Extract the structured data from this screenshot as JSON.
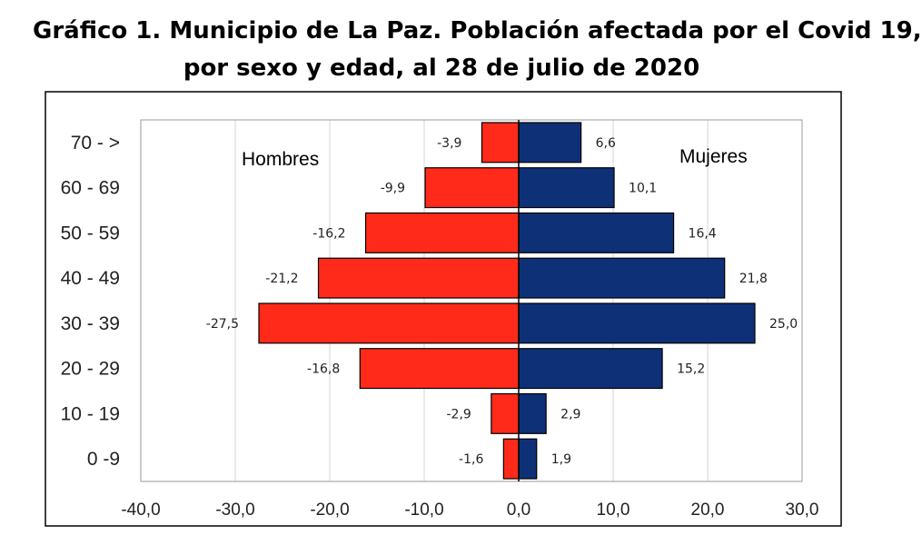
{
  "title_line1": "Gráfico 1. Municipio de La Paz. Población afectada por el Covid 19,",
  "title_line2": "por sexo y edad, al 28 de julio de 2020",
  "chart_data": {
    "type": "bar",
    "orientation": "horizontal",
    "stacked": "diverging",
    "categories": [
      "0 -9",
      "10 - 19",
      "20 - 29",
      "30 - 39",
      "40 - 49",
      "50 - 59",
      "60 - 69",
      "70 - >"
    ],
    "series": [
      {
        "name": "Hombres",
        "values": [
          -1.6,
          -2.9,
          -16.8,
          -27.5,
          -21.2,
          -16.2,
          -9.9,
          -3.9
        ],
        "labels": [
          "-1,6",
          "-2,9",
          "-16,8",
          "-27,5",
          "-21,2",
          "-16,2",
          "-9,9",
          "-3,9"
        ],
        "color": "#ff2a1a"
      },
      {
        "name": "Mujeres",
        "values": [
          1.9,
          2.9,
          15.2,
          25.0,
          21.8,
          16.4,
          10.1,
          6.6
        ],
        "labels": [
          "1,9",
          "2,9",
          "15,2",
          "25,0",
          "21,8",
          "16,4",
          "10,1",
          "6,6"
        ],
        "color": "#0e3077"
      }
    ],
    "xlim": [
      -40,
      30
    ],
    "xticks": [
      -40,
      -30,
      -20,
      -10,
      0,
      10,
      20,
      30
    ],
    "xtick_labels": [
      "-40,0",
      "-30,0",
      "-20,0",
      "-10,0",
      "0,0",
      "10,0",
      "20,0",
      "30,0"
    ],
    "grid": true,
    "legend_text_placement": "inside plot, labels beside bars at top"
  }
}
